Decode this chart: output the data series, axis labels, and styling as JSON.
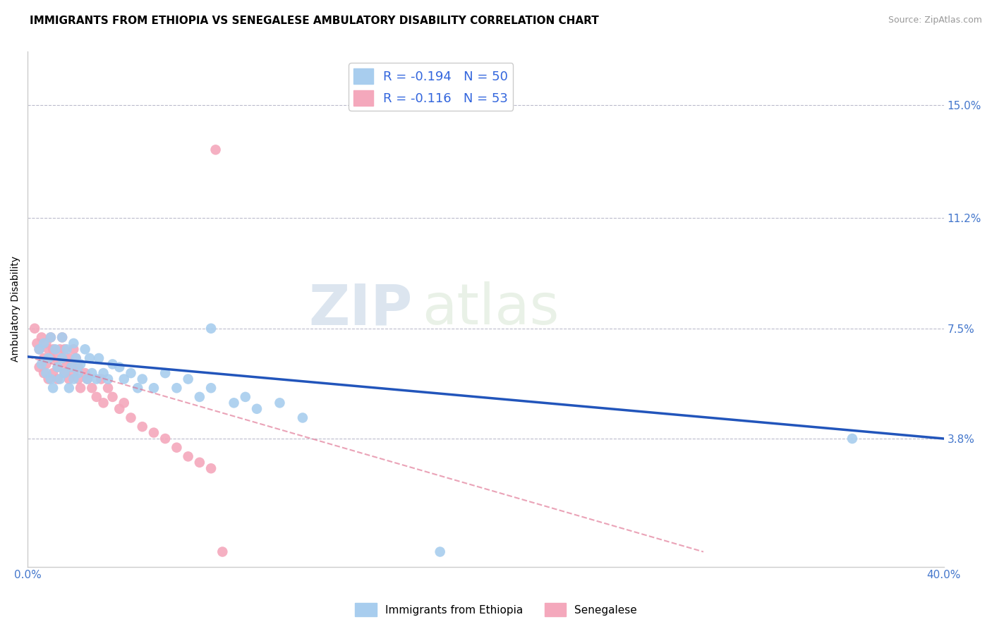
{
  "title": "IMMIGRANTS FROM ETHIOPIA VS SENEGALESE AMBULATORY DISABILITY CORRELATION CHART",
  "source": "Source: ZipAtlas.com",
  "ylabel": "Ambulatory Disability",
  "xlim": [
    0.0,
    0.4
  ],
  "ylim": [
    -0.005,
    0.168
  ],
  "yticks": [
    0.038,
    0.075,
    0.112,
    0.15
  ],
  "ytick_labels": [
    "3.8%",
    "7.5%",
    "11.2%",
    "15.0%"
  ],
  "xtick_labels": [
    "0.0%",
    "40.0%"
  ],
  "blue_R": -0.194,
  "blue_N": 50,
  "pink_R": -0.116,
  "pink_N": 53,
  "blue_color": "#A8CDEE",
  "pink_color": "#F4A8BC",
  "blue_line_color": "#2255BB",
  "pink_line_color": "#DD6688",
  "watermark_zip": "ZIP",
  "watermark_atlas": "atlas",
  "blue_x": [
    0.005,
    0.006,
    0.007,
    0.008,
    0.009,
    0.01,
    0.01,
    0.011,
    0.012,
    0.013,
    0.014,
    0.015,
    0.015,
    0.016,
    0.017,
    0.018,
    0.019,
    0.02,
    0.02,
    0.021,
    0.022,
    0.023,
    0.025,
    0.026,
    0.027,
    0.028,
    0.03,
    0.031,
    0.033,
    0.035,
    0.037,
    0.04,
    0.042,
    0.045,
    0.048,
    0.05,
    0.055,
    0.06,
    0.065,
    0.07,
    0.075,
    0.08,
    0.09,
    0.095,
    0.1,
    0.11,
    0.12,
    0.08,
    0.18,
    0.36
  ],
  "blue_y": [
    0.068,
    0.063,
    0.07,
    0.06,
    0.065,
    0.058,
    0.072,
    0.055,
    0.068,
    0.062,
    0.058,
    0.072,
    0.065,
    0.06,
    0.068,
    0.055,
    0.062,
    0.07,
    0.058,
    0.065,
    0.06,
    0.063,
    0.068,
    0.058,
    0.065,
    0.06,
    0.058,
    0.065,
    0.06,
    0.058,
    0.063,
    0.062,
    0.058,
    0.06,
    0.055,
    0.058,
    0.055,
    0.06,
    0.055,
    0.058,
    0.052,
    0.055,
    0.05,
    0.052,
    0.048,
    0.05,
    0.045,
    0.075,
    0.0,
    0.038
  ],
  "pink_x": [
    0.003,
    0.004,
    0.005,
    0.005,
    0.006,
    0.007,
    0.007,
    0.008,
    0.008,
    0.009,
    0.009,
    0.01,
    0.01,
    0.011,
    0.011,
    0.012,
    0.013,
    0.013,
    0.014,
    0.015,
    0.015,
    0.016,
    0.016,
    0.017,
    0.018,
    0.018,
    0.019,
    0.02,
    0.02,
    0.021,
    0.022,
    0.022,
    0.023,
    0.025,
    0.026,
    0.028,
    0.03,
    0.032,
    0.033,
    0.035,
    0.037,
    0.04,
    0.042,
    0.045,
    0.05,
    0.055,
    0.06,
    0.065,
    0.07,
    0.075,
    0.08,
    0.085,
    0.082
  ],
  "pink_y": [
    0.075,
    0.07,
    0.068,
    0.062,
    0.072,
    0.065,
    0.06,
    0.07,
    0.063,
    0.068,
    0.058,
    0.072,
    0.065,
    0.068,
    0.06,
    0.065,
    0.058,
    0.062,
    0.068,
    0.072,
    0.065,
    0.06,
    0.068,
    0.063,
    0.065,
    0.058,
    0.062,
    0.068,
    0.06,
    0.065,
    0.058,
    0.062,
    0.055,
    0.06,
    0.058,
    0.055,
    0.052,
    0.058,
    0.05,
    0.055,
    0.052,
    0.048,
    0.05,
    0.045,
    0.042,
    0.04,
    0.038,
    0.035,
    0.032,
    0.03,
    0.028,
    0.0,
    0.135
  ],
  "title_fontsize": 11,
  "label_fontsize": 10,
  "tick_fontsize": 11
}
